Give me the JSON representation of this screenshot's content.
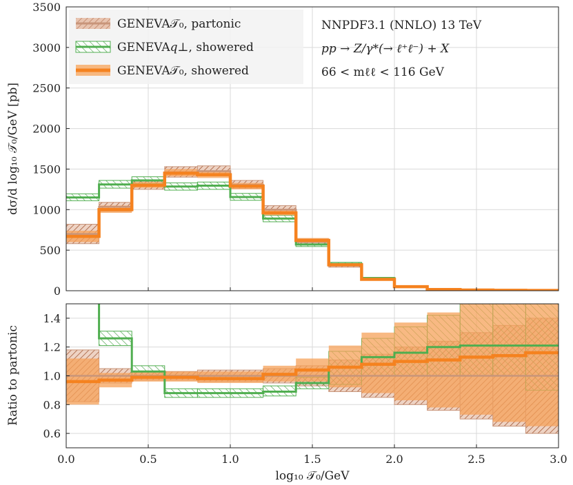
{
  "chart_data": [
    {
      "type": "line",
      "panel": "main",
      "ylabel": "dσ/d log₁₀ 𝒯₀/GeV [pb]",
      "xlabel": "",
      "xlim": [
        0,
        3
      ],
      "ylim": [
        0,
        3500
      ],
      "yticks": [
        "0",
        "500",
        "1000",
        "1500",
        "2000",
        "2500",
        "3000",
        "3500"
      ],
      "ytick_values": [
        0,
        500,
        1000,
        1500,
        2000,
        2500,
        3000,
        3500
      ],
      "grid": true,
      "legend_position": "top-left",
      "annotations": [
        "NNPDF3.1 (NNLO) 13 TeV",
        "pp → Z/γ*(→ ℓ⁺ℓ⁻) + X",
        "66 < mℓℓ < 116 GeV"
      ],
      "bin_edges": [
        0,
        0.2,
        0.4,
        0.6,
        0.8,
        1.0,
        1.2,
        1.4,
        1.6,
        1.8,
        2.0,
        2.2,
        2.4,
        2.6,
        2.8,
        3.0
      ],
      "series": [
        {
          "name": "GENEVA𝒯₀, partonic",
          "color": "#c8957a",
          "values": [
            700,
            1035,
            1300,
            1460,
            1475,
            1305,
            1000,
            600,
            310,
            140,
            50,
            15,
            8,
            5,
            3
          ],
          "band_low": [
            580,
            980,
            1250,
            1400,
            1420,
            1260,
            960,
            570,
            290,
            130,
            45,
            13,
            7,
            4,
            2
          ],
          "band_high": [
            820,
            1090,
            1350,
            1530,
            1540,
            1360,
            1050,
            640,
            330,
            155,
            58,
            18,
            10,
            6,
            4
          ]
        },
        {
          "name": "GENEVA𝑞⊥, showered",
          "color": "#4fae4f",
          "values": [
            1150,
            1310,
            1360,
            1285,
            1295,
            1155,
            890,
            570,
            330,
            155,
            55,
            17,
            9,
            5,
            3
          ],
          "band_low": [
            1110,
            1265,
            1320,
            1240,
            1250,
            1115,
            850,
            545,
            315,
            145,
            50,
            15,
            8,
            4,
            2
          ],
          "band_high": [
            1195,
            1360,
            1405,
            1330,
            1340,
            1200,
            930,
            600,
            350,
            165,
            60,
            20,
            11,
            6,
            4
          ]
        },
        {
          "name": "GENEVA𝒯₀, showered",
          "color": "#f5821f",
          "values": [
            670,
            1000,
            1300,
            1450,
            1430,
            1290,
            960,
            620,
            320,
            140,
            50,
            15,
            8,
            5,
            3
          ],
          "band_low": [
            600,
            960,
            1270,
            1410,
            1390,
            1250,
            930,
            600,
            305,
            132,
            46,
            13,
            7,
            4,
            2
          ],
          "band_high": [
            740,
            1050,
            1340,
            1500,
            1480,
            1330,
            1000,
            650,
            340,
            150,
            55,
            18,
            10,
            6,
            4
          ]
        }
      ]
    },
    {
      "type": "line",
      "panel": "ratio",
      "ylabel": "Ratio to partonic",
      "xlabel": "log₁₀ 𝒯₀/GeV",
      "xlim": [
        0,
        3
      ],
      "ylim": [
        0.5,
        1.5
      ],
      "xticks": [
        "0.0",
        "0.5",
        "1.0",
        "1.5",
        "2.0",
        "2.5",
        "3.0"
      ],
      "xtick_values": [
        0,
        0.5,
        1.0,
        1.5,
        2.0,
        2.5,
        3.0
      ],
      "yticks": [
        "0.6",
        "0.8",
        "1.0",
        "1.2",
        "1.4"
      ],
      "ytick_values": [
        0.6,
        0.8,
        1.0,
        1.2,
        1.4
      ],
      "grid": true,
      "bin_edges": [
        0,
        0.2,
        0.4,
        0.6,
        0.8,
        1.0,
        1.2,
        1.4,
        1.6,
        1.8,
        2.0,
        2.2,
        2.4,
        2.6,
        2.8,
        3.0
      ],
      "series": [
        {
          "name": "GENEVA𝒯₀, partonic",
          "color": "#c8957a",
          "values": [
            1.0,
            1.0,
            1.0,
            1.0,
            1.0,
            1.0,
            1.0,
            1.0,
            1.0,
            1.0,
            1.0,
            1.0,
            1.0,
            1.0,
            1.0
          ],
          "band_low": [
            0.82,
            0.95,
            0.97,
            0.97,
            0.96,
            0.96,
            0.95,
            0.93,
            0.89,
            0.85,
            0.8,
            0.76,
            0.7,
            0.65,
            0.6
          ],
          "band_high": [
            1.18,
            1.05,
            1.03,
            1.03,
            1.04,
            1.04,
            1.05,
            1.07,
            1.11,
            1.15,
            1.2,
            1.24,
            1.3,
            1.35,
            1.4
          ]
        },
        {
          "name": "GENEVA𝑞⊥, showered",
          "color": "#4fae4f",
          "values": [
            1.65,
            1.26,
            1.03,
            0.88,
            0.88,
            0.88,
            0.89,
            0.95,
            1.06,
            1.13,
            1.16,
            1.2,
            1.21,
            1.21,
            1.21
          ],
          "band_low": [
            1.55,
            1.21,
            1.0,
            0.85,
            0.85,
            0.85,
            0.86,
            0.91,
            0.94,
            1.0,
            1.0,
            1.0,
            1.0,
            1.0,
            0.9
          ],
          "band_high": [
            1.75,
            1.31,
            1.07,
            0.91,
            0.91,
            0.91,
            0.93,
            0.99,
            1.17,
            1.26,
            1.34,
            1.42,
            1.5,
            1.5,
            1.5
          ]
        },
        {
          "name": "GENEVA𝒯₀, showered",
          "color": "#f5821f",
          "values": [
            0.96,
            0.97,
            0.99,
            0.99,
            0.98,
            0.98,
            1.01,
            1.04,
            1.06,
            1.08,
            1.1,
            1.11,
            1.13,
            1.14,
            1.16
          ],
          "band_low": [
            0.8,
            0.92,
            0.96,
            0.96,
            0.95,
            0.95,
            0.96,
            0.96,
            0.92,
            0.88,
            0.83,
            0.78,
            0.73,
            0.68,
            0.65
          ],
          "band_high": [
            1.12,
            1.02,
            1.03,
            1.03,
            1.03,
            1.03,
            1.07,
            1.12,
            1.21,
            1.3,
            1.37,
            1.44,
            1.5,
            1.5,
            1.5
          ]
        }
      ]
    }
  ]
}
